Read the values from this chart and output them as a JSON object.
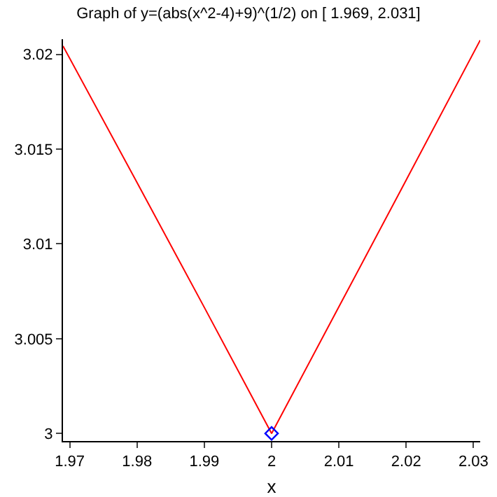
{
  "chart_data": {
    "type": "line",
    "title": "Graph of y=(abs(x^2-4)+9)^(1/2) on [ 1.969, 2.031]",
    "xlabel": "x",
    "series": [
      {
        "color": "#ff0000",
        "x": [
          1.969,
          1.98,
          1.99,
          2,
          2.01,
          2.02,
          2.031
        ],
        "values": [
          3.02044,
          3.01324,
          3.00665,
          3,
          3.00668,
          3.01337,
          3.02075
        ]
      },
      {
        "type": "scatter",
        "color": "#0000ff",
        "marker": "diamond",
        "x": [
          2
        ],
        "values": [
          3
        ]
      }
    ],
    "xlim": [
      1.969,
      2.031
    ],
    "xticks": [
      1.97,
      1.98,
      1.99,
      2,
      2.01,
      2.02,
      2.03
    ],
    "ylim": [
      2.9996,
      3.0208
    ],
    "yticks": [
      3,
      3.005,
      3.01,
      3.015,
      3.02
    ],
    "grid": false
  }
}
